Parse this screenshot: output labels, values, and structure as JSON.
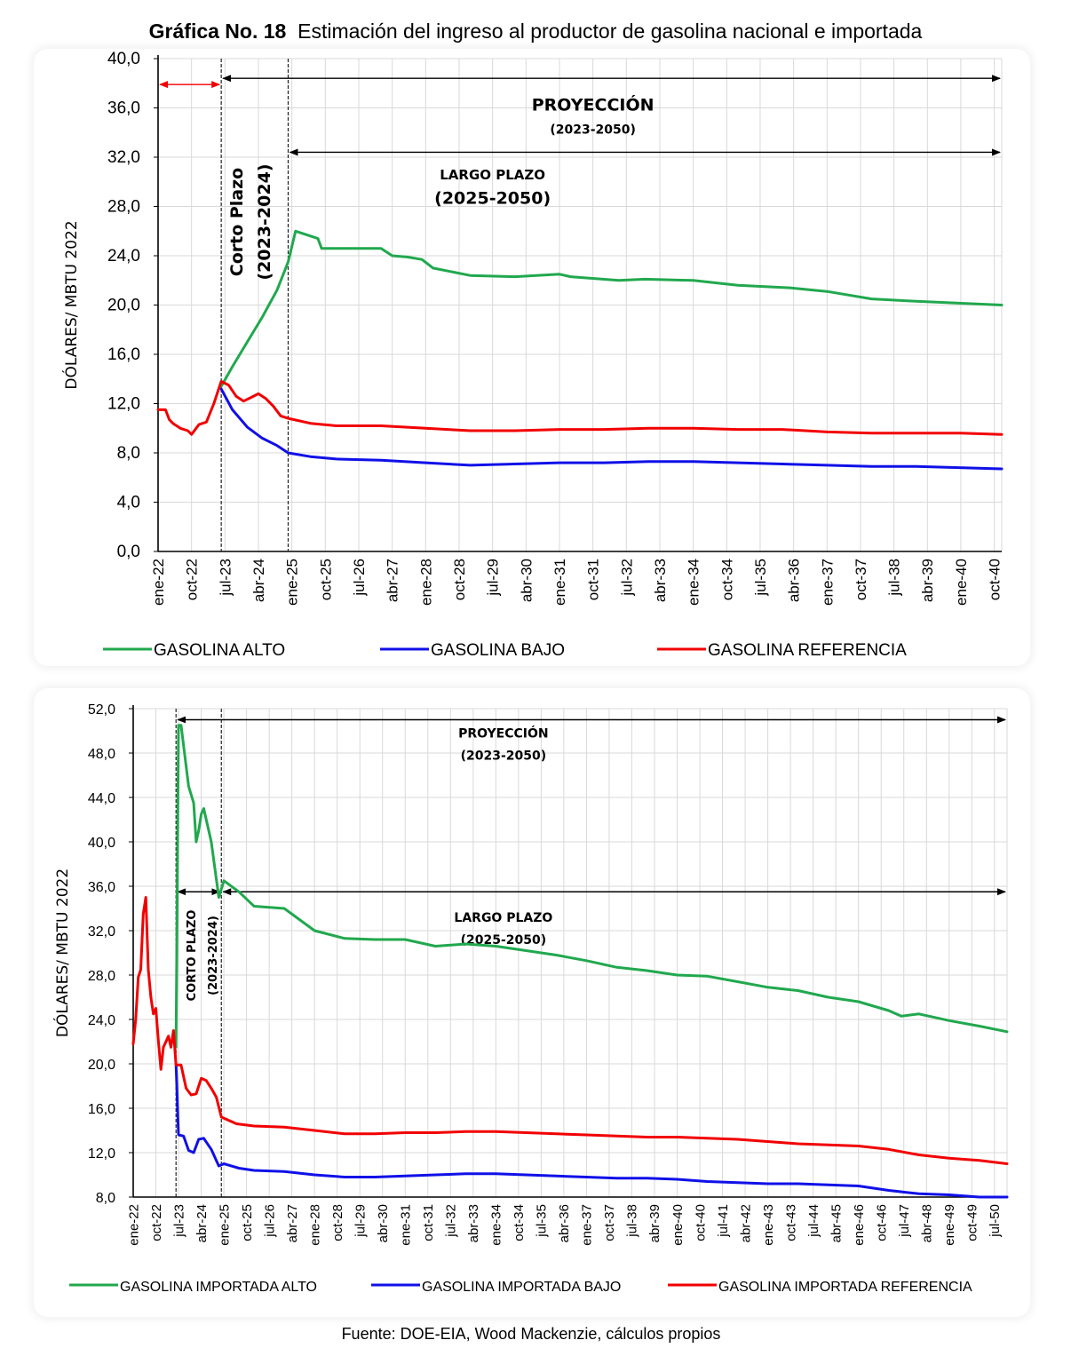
{
  "title": {
    "label": "Gráfica No. 18",
    "text": "Estimación del ingreso al productor de gasolina nacional e importada"
  },
  "source": "Fuente: DOE-EIA, Wood Mackenzie, cálculos propios",
  "colors": {
    "high": "#21a84e",
    "low": "#1010e8",
    "ref": "#f20000",
    "grid": "#d9d9d9"
  },
  "chart_data": [
    {
      "type": "line",
      "ylabel": "DÓLARES/ MBTU 2022",
      "ylim": [
        0,
        40
      ],
      "ystep": 4,
      "ytick_labels": [
        "0,0",
        "4,0",
        "8,0",
        "12,0",
        "16,0",
        "20,0",
        "24,0",
        "28,0",
        "32,0",
        "36,0",
        "40,0"
      ],
      "x_tick_labels": [
        "ene-22",
        "oct-22",
        "jul-23",
        "abr-24",
        "ene-25",
        "oct-25",
        "jul-26",
        "abr-27",
        "ene-28",
        "oct-28",
        "jul-29",
        "abr-30",
        "ene-31",
        "oct-31",
        "jul-32",
        "abr-33",
        "ene-34",
        "oct-34",
        "jul-35",
        "abr-36",
        "ene-37",
        "oct-37",
        "jul-38",
        "abr-39",
        "ene-40",
        "oct-40"
      ],
      "x_range": [
        "ene-22",
        "dic-40"
      ],
      "grid": true,
      "legend_position": "bottom",
      "annotations": {
        "projection_title": "PROYECCIÓN",
        "projection_years": "(2023-2050)",
        "long_title": "LARGO PLAZO",
        "long_years": "(2025-2050)",
        "short_title": "Corto Plazo",
        "short_years": "(2023-2024)"
      },
      "series": [
        {
          "name": "GASOLINA ALTO",
          "x": [
            "jun-23",
            "sep-23",
            "ene-24",
            "may-24",
            "sep-24",
            "dic-24",
            "feb-25",
            "ago-25",
            "sep-25",
            "ene-26",
            "ene-27",
            "abr-27",
            "ago-27",
            "dic-27",
            "mar-28",
            "ene-29",
            "ene-30",
            "ene-31",
            "abr-31",
            "may-32",
            "dic-32",
            "ene-34",
            "ene-35",
            "mar-36",
            "ene-37",
            "ene-38",
            "ene-39",
            "dic-40"
          ],
          "values": [
            13.4,
            15.0,
            17.0,
            19.0,
            21.2,
            23.5,
            26.0,
            25.4,
            24.6,
            24.6,
            24.6,
            24.0,
            23.9,
            23.7,
            23.0,
            22.4,
            22.3,
            22.5,
            22.3,
            22.0,
            22.1,
            22.0,
            21.6,
            21.4,
            21.1,
            20.5,
            20.3,
            20.0
          ]
        },
        {
          "name": "GASOLINA BAJO",
          "x": [
            "jun-23",
            "sep-23",
            "ene-24",
            "may-24",
            "sep-24",
            "dic-24",
            "jun-25",
            "ene-26",
            "ene-27",
            "ene-28",
            "ene-29",
            "ene-30",
            "ene-31",
            "ene-32",
            "ene-33",
            "ene-34",
            "ene-35",
            "ene-36",
            "ene-37",
            "ene-38",
            "ene-39",
            "dic-40"
          ],
          "values": [
            13.2,
            11.5,
            10.1,
            9.2,
            8.6,
            8.0,
            7.7,
            7.5,
            7.4,
            7.2,
            7.0,
            7.1,
            7.2,
            7.2,
            7.3,
            7.3,
            7.2,
            7.1,
            7.0,
            6.9,
            6.9,
            6.7
          ]
        },
        {
          "name": "GASOLINA REFERENCIA",
          "x": [
            "ene-22",
            "mar-22",
            "abr-22",
            "may-22",
            "jul-22",
            "sep-22",
            "oct-22",
            "dic-22",
            "feb-23",
            "abr-23",
            "jun-23",
            "ago-23",
            "oct-23",
            "dic-23",
            "feb-24",
            "abr-24",
            "jun-24",
            "ago-24",
            "oct-24",
            "dic-24",
            "jun-25",
            "ene-26",
            "ene-27",
            "ene-28",
            "ene-29",
            "ene-30",
            "ene-31",
            "ene-32",
            "ene-33",
            "ene-34",
            "ene-35",
            "ene-36",
            "ene-37",
            "ene-38",
            "ene-39",
            "ene-40",
            "dic-40"
          ],
          "values": [
            11.5,
            11.5,
            10.7,
            10.4,
            10.0,
            9.8,
            9.5,
            10.3,
            10.5,
            12.0,
            13.8,
            13.5,
            12.6,
            12.2,
            12.5,
            12.8,
            12.4,
            11.8,
            11.0,
            10.8,
            10.4,
            10.2,
            10.2,
            10.0,
            9.8,
            9.8,
            9.9,
            9.9,
            10.0,
            10.0,
            9.9,
            9.9,
            9.7,
            9.6,
            9.6,
            9.6,
            9.5
          ]
        }
      ]
    },
    {
      "type": "line",
      "ylabel": "DÓLARES/ MBTU 2022",
      "ylim": [
        8,
        52
      ],
      "ystep": 4,
      "ytick_labels": [
        "8,0",
        "12,0",
        "16,0",
        "20,0",
        "24,0",
        "28,0",
        "32,0",
        "36,0",
        "40,0",
        "44,0",
        "48,0",
        "52,0"
      ],
      "x_tick_labels": [
        "ene-22",
        "oct-22",
        "jul-23",
        "abr-24",
        "ene-25",
        "oct-25",
        "jul-26",
        "abr-27",
        "ene-28",
        "oct-28",
        "jul-29",
        "abr-30",
        "ene-31",
        "oct-31",
        "jul-32",
        "abr-33",
        "ene-34",
        "oct-34",
        "jul-35",
        "abr-36",
        "ene-37",
        "oct-37",
        "jul-38",
        "abr-39",
        "ene-40",
        "oct-40",
        "jul-41",
        "abr-42",
        "ene-43",
        "oct-43",
        "jul-44",
        "abr-45",
        "ene-46",
        "oct-46",
        "jul-47",
        "abr-48",
        "ene-49",
        "oct-49",
        "jul-50"
      ],
      "x_range": [
        "ene-22",
        "dic-50"
      ],
      "grid": true,
      "legend_position": "bottom",
      "annotations": {
        "projection_title": "PROYECCIÓN",
        "projection_years": "(2023-2050)",
        "long_title": "LARGO PLAZO",
        "long_years": "(2025-2050)",
        "short_title": "CORTO PLAZO",
        "short_years": "(2023-2024)"
      },
      "series": [
        {
          "name": "GASOLINA IMPORTADA ALTO",
          "x": [
            "jun-23",
            "jul-23",
            "ago-23",
            "nov-23",
            "ene-24",
            "feb-24",
            "mar-24",
            "abr-24",
            "may-24",
            "jul-24",
            "ago-24",
            "nov-24",
            "ene-25",
            "jul-25",
            "ene-26",
            "ene-27",
            "ene-28",
            "ene-29",
            "ene-30",
            "ene-31",
            "ene-32",
            "ene-33",
            "ene-34",
            "ene-35",
            "ene-36",
            "ene-37",
            "ene-38",
            "ene-39",
            "ene-40",
            "ene-41",
            "ene-42",
            "ene-43",
            "ene-44",
            "ene-45",
            "ene-46",
            "ene-47",
            "jun-47",
            "ene-48",
            "ene-49",
            "ene-50",
            "dic-50"
          ],
          "values": [
            21.5,
            50.5,
            50.5,
            45.0,
            43.5,
            40.0,
            41.0,
            42.5,
            43.0,
            41.0,
            40.0,
            35.0,
            36.5,
            35.5,
            34.2,
            34.0,
            32.0,
            31.3,
            31.2,
            31.2,
            30.6,
            30.8,
            30.6,
            30.2,
            29.8,
            29.3,
            28.7,
            28.4,
            28.0,
            27.9,
            27.4,
            26.9,
            26.6,
            26.0,
            25.6,
            24.8,
            24.3,
            24.5,
            23.9,
            23.4,
            22.9
          ]
        },
        {
          "name": "GASOLINA IMPORTADA BAJO",
          "x": [
            "jun-23",
            "jul-23",
            "sep-23",
            "nov-23",
            "ene-24",
            "mar-24",
            "may-24",
            "ago-24",
            "nov-24",
            "ene-25",
            "jul-25",
            "ene-26",
            "ene-27",
            "ene-28",
            "ene-29",
            "ene-30",
            "ene-31",
            "ene-32",
            "ene-33",
            "ene-34",
            "ene-35",
            "ene-36",
            "ene-37",
            "ene-38",
            "ene-39",
            "ene-40",
            "ene-41",
            "ene-42",
            "ene-43",
            "ene-44",
            "ene-45",
            "ene-46",
            "ene-47",
            "ene-48",
            "ene-49",
            "ene-50",
            "dic-50"
          ],
          "values": [
            20.0,
            13.6,
            13.5,
            12.2,
            12.0,
            13.2,
            13.3,
            12.3,
            10.8,
            11.0,
            10.6,
            10.4,
            10.3,
            10.0,
            9.8,
            9.8,
            9.9,
            10.0,
            10.1,
            10.1,
            10.0,
            9.9,
            9.8,
            9.7,
            9.7,
            9.6,
            9.4,
            9.3,
            9.2,
            9.2,
            9.1,
            9.0,
            8.6,
            8.3,
            8.2,
            8.0,
            8.0
          ]
        },
        {
          "name": "GASOLINA IMPORTADA REFERENCIA",
          "x": [
            "ene-22",
            "feb-22",
            "mar-22",
            "abr-22",
            "may-22",
            "jun-22",
            "jul-22",
            "ago-22",
            "sep-22",
            "oct-22",
            "nov-22",
            "dic-22",
            "ene-23",
            "feb-23",
            "mar-23",
            "abr-23",
            "may-23",
            "jun-23",
            "ago-23",
            "oct-23",
            "dic-23",
            "feb-24",
            "abr-24",
            "jun-24",
            "ago-24",
            "oct-24",
            "dic-24",
            "jun-25",
            "ene-26",
            "ene-27",
            "ene-28",
            "ene-29",
            "ene-30",
            "ene-31",
            "ene-32",
            "ene-33",
            "ene-34",
            "ene-35",
            "ene-36",
            "ene-37",
            "ene-38",
            "ene-39",
            "ene-40",
            "ene-41",
            "ene-42",
            "ene-43",
            "ene-44",
            "ene-45",
            "ene-46",
            "ene-47",
            "ene-48",
            "ene-49",
            "ene-50",
            "dic-50"
          ],
          "values": [
            21.8,
            24.0,
            27.8,
            28.5,
            33.5,
            35.0,
            28.5,
            26.0,
            24.5,
            25.0,
            22.0,
            19.5,
            21.5,
            22.0,
            22.5,
            21.5,
            23.0,
            19.9,
            19.9,
            17.8,
            17.2,
            17.3,
            18.7,
            18.5,
            17.8,
            17.0,
            15.2,
            14.6,
            14.4,
            14.3,
            14.0,
            13.7,
            13.7,
            13.8,
            13.8,
            13.9,
            13.9,
            13.8,
            13.7,
            13.6,
            13.5,
            13.4,
            13.4,
            13.3,
            13.2,
            13.0,
            12.8,
            12.7,
            12.6,
            12.3,
            11.8,
            11.5,
            11.3,
            11.0
          ]
        }
      ]
    }
  ]
}
